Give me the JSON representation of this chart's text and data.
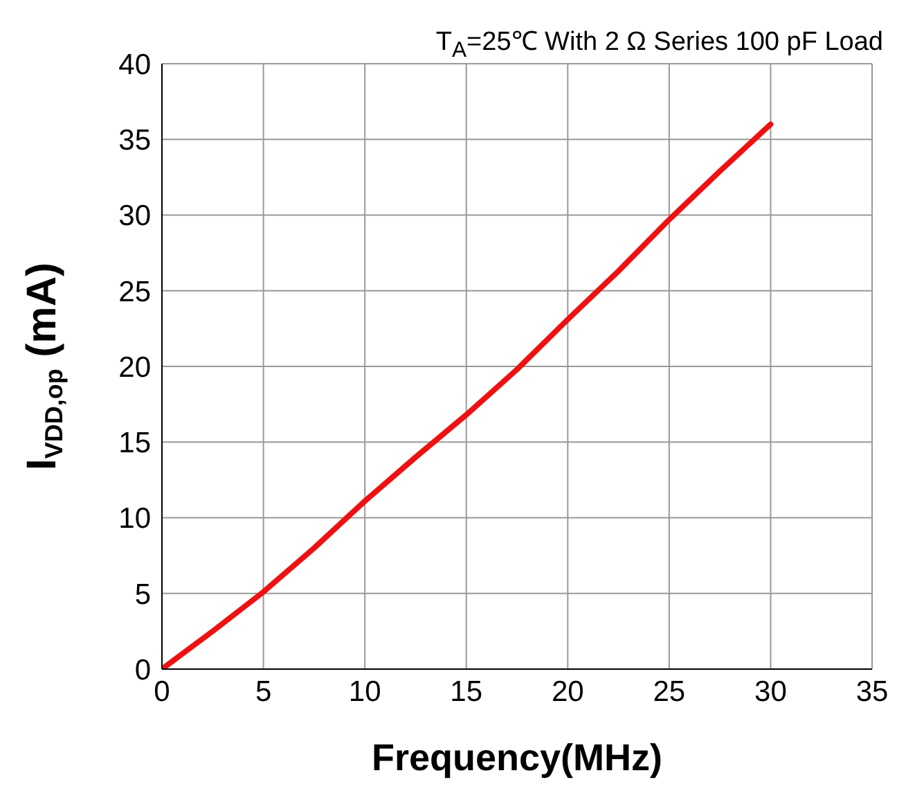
{
  "chart_data": {
    "type": "line",
    "title": "T$_{A}$=25℃ With 2 Ω Series 100 pF Load",
    "xlabel": "Frequency(MHz)",
    "ylabel": "I$_{VDD,op}$ (mA)",
    "x": [
      0,
      2.5,
      5,
      7.5,
      10,
      12.5,
      15,
      17.5,
      20,
      22.5,
      25,
      27.5,
      30
    ],
    "series": [
      {
        "color": "#ee1111",
        "values": [
          0,
          2.5,
          5.1,
          8,
          11.1,
          14,
          16.8,
          19.8,
          23.1,
          26.3,
          29.7,
          32.9,
          36
        ]
      }
    ],
    "xlim": [
      0,
      35
    ],
    "xticks": [
      0,
      5,
      10,
      15,
      20,
      25,
      30,
      35
    ],
    "ylim": [
      0,
      40
    ],
    "yticks": [
      0,
      5,
      10,
      15,
      20,
      25,
      30,
      35,
      40
    ],
    "grid": true,
    "legend": false,
    "marker": "none",
    "line_style": "solid"
  }
}
